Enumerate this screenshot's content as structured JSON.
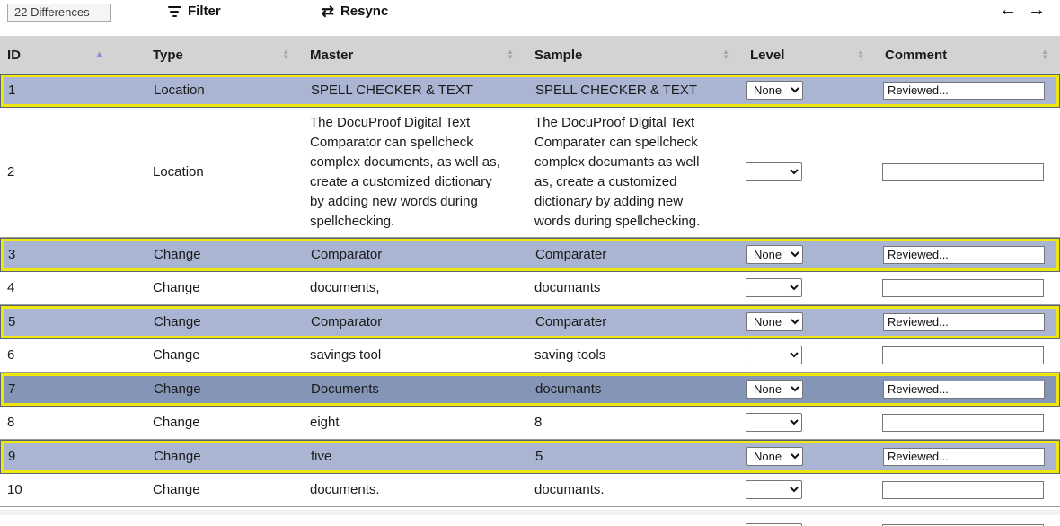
{
  "toolbar": {
    "differences_badge": "22 Differences",
    "filter_label": "Filter",
    "resync_label": "Resync"
  },
  "icons": {
    "resync_glyph": "⇄",
    "prev_arrow": "←",
    "next_arrow": "→",
    "sort_up": "▲",
    "sort_down": "▼"
  },
  "table": {
    "columns": [
      {
        "key": "id",
        "label": "ID",
        "sorted": "asc"
      },
      {
        "key": "type",
        "label": "Type",
        "sorted": "none"
      },
      {
        "key": "master",
        "label": "Master",
        "sorted": "none"
      },
      {
        "key": "sample",
        "label": "Sample",
        "sorted": "none"
      },
      {
        "key": "level",
        "label": "Level",
        "sorted": "none"
      },
      {
        "key": "comment",
        "label": "Comment",
        "sorted": "none"
      }
    ],
    "rows": [
      {
        "id": "1",
        "type": "Location",
        "master": "SPELL CHECKER & TEXT",
        "sample": "SPELL CHECKER & TEXT",
        "level": "None",
        "comment": "Reviewed...",
        "highlighted": true,
        "selected": false,
        "partial": false
      },
      {
        "id": "2",
        "type": "Location",
        "master": "The DocuProof Digital Text Comparator can spellcheck complex documents, as well as, create a customized dictionary by adding new words during spellchecking.",
        "sample": "The DocuProof Digital Text Comparater can spellcheck complex documants as well as, create a customized dictionary by adding new words during spellchecking.",
        "level": "",
        "comment": "",
        "highlighted": false,
        "selected": false,
        "partial": false
      },
      {
        "id": "3",
        "type": "Change",
        "master": "Comparator",
        "sample": "Comparater",
        "level": "None",
        "comment": "Reviewed...",
        "highlighted": true,
        "selected": false,
        "partial": false
      },
      {
        "id": "4",
        "type": "Change",
        "master": "documents,",
        "sample": "documants",
        "level": "",
        "comment": "",
        "highlighted": false,
        "selected": false,
        "partial": false
      },
      {
        "id": "5",
        "type": "Change",
        "master": "Comparator",
        "sample": "Comparater",
        "level": "None",
        "comment": "Reviewed...",
        "highlighted": true,
        "selected": false,
        "partial": false
      },
      {
        "id": "6",
        "type": "Change",
        "master": "savings tool",
        "sample": "saving tools",
        "level": "",
        "comment": "",
        "highlighted": false,
        "selected": false,
        "partial": false
      },
      {
        "id": "7",
        "type": "Change",
        "master": "Documents",
        "sample": "documants",
        "level": "None",
        "comment": "Reviewed...",
        "highlighted": true,
        "selected": true,
        "partial": false
      },
      {
        "id": "8",
        "type": "Change",
        "master": "eight",
        "sample": "8",
        "level": "",
        "comment": "",
        "highlighted": false,
        "selected": false,
        "partial": false
      },
      {
        "id": "9",
        "type": "Change",
        "master": "five",
        "sample": "5",
        "level": "None",
        "comment": "Reviewed...",
        "highlighted": true,
        "selected": false,
        "partial": false
      },
      {
        "id": "10",
        "type": "Change",
        "master": "documents.",
        "sample": "documants.",
        "level": "",
        "comment": "",
        "highlighted": false,
        "selected": false,
        "partial": false
      },
      {
        "id": "",
        "type": "",
        "master": "",
        "sample": "",
        "level": "",
        "comment": "",
        "highlighted": false,
        "selected": false,
        "partial": true
      }
    ]
  },
  "colors": {
    "highlight_row": "#a9b5d2",
    "selected_row": "#8495b7",
    "highlight_border_yellow": "#ede70b",
    "header_bg": "#d3d3d3",
    "sorted_arrow": "#8b8bd9"
  }
}
